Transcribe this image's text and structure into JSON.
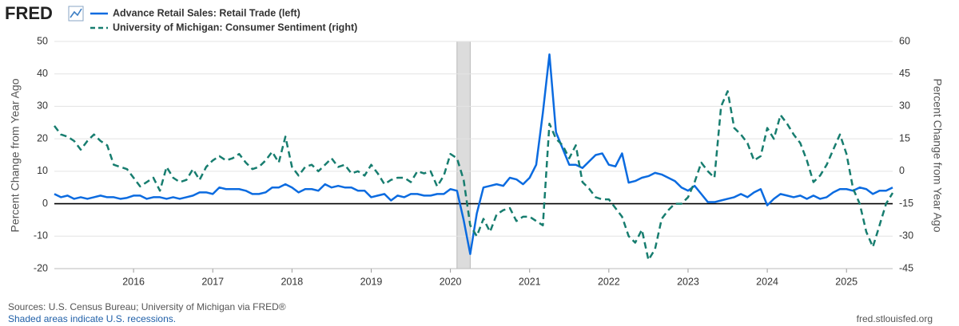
{
  "chart_data": {
    "type": "line",
    "logo": "FRED",
    "ylabel": "Percent Change from Year Ago",
    "y2label": "Percent Change from Year Ago",
    "sources": "Sources: U.S. Census Bureau; University of Michigan via FRED®",
    "note": "Shaded areas indicate U.S. recessions.",
    "credit": "fred.stlouisfed.org",
    "xlim": [
      2015,
      2025.583
    ],
    "xticks": [
      2016,
      2017,
      2018,
      2019,
      2020,
      2021,
      2022,
      2023,
      2024,
      2025
    ],
    "ylim": [
      -20,
      50
    ],
    "yticks": [
      -20,
      -10,
      0,
      10,
      20,
      30,
      40,
      50
    ],
    "y2lim": [
      -45,
      60
    ],
    "y2ticks": [
      -45,
      -30,
      -15,
      0,
      15,
      30,
      45,
      60
    ],
    "grid": true,
    "recessions": [
      {
        "start": 2020.083,
        "end": 2020.25
      }
    ],
    "x": [
      2015,
      2015.083,
      2015.167,
      2015.25,
      2015.333,
      2015.417,
      2015.5,
      2015.583,
      2015.667,
      2015.75,
      2015.833,
      2015.917,
      2016,
      2016.083,
      2016.167,
      2016.25,
      2016.333,
      2016.417,
      2016.5,
      2016.583,
      2016.667,
      2016.75,
      2016.833,
      2016.917,
      2017,
      2017.083,
      2017.167,
      2017.25,
      2017.333,
      2017.417,
      2017.5,
      2017.583,
      2017.667,
      2017.75,
      2017.833,
      2017.917,
      2018,
      2018.083,
      2018.167,
      2018.25,
      2018.333,
      2018.417,
      2018.5,
      2018.583,
      2018.667,
      2018.75,
      2018.833,
      2018.917,
      2019,
      2019.083,
      2019.167,
      2019.25,
      2019.333,
      2019.417,
      2019.5,
      2019.583,
      2019.667,
      2019.75,
      2019.833,
      2019.917,
      2020,
      2020.083,
      2020.167,
      2020.25,
      2020.333,
      2020.417,
      2020.5,
      2020.583,
      2020.667,
      2020.75,
      2020.833,
      2020.917,
      2021,
      2021.083,
      2021.167,
      2021.25,
      2021.333,
      2021.417,
      2021.5,
      2021.583,
      2021.667,
      2021.75,
      2021.833,
      2021.917,
      2022,
      2022.083,
      2022.167,
      2022.25,
      2022.333,
      2022.417,
      2022.5,
      2022.583,
      2022.667,
      2022.75,
      2022.833,
      2022.917,
      2023,
      2023.083,
      2023.167,
      2023.25,
      2023.333,
      2023.417,
      2023.5,
      2023.583,
      2023.667,
      2023.75,
      2023.833,
      2023.917,
      2024,
      2024.083,
      2024.167,
      2024.25,
      2024.333,
      2024.417,
      2024.5,
      2024.583,
      2024.667,
      2024.75,
      2024.833,
      2024.917,
      2025,
      2025.083,
      2025.167,
      2025.25,
      2025.333,
      2025.417,
      2025.5,
      2025.583
    ],
    "series": [
      {
        "name": "Advance Retail Sales: Retail Trade (left)",
        "color": "#0b6be0",
        "line_style": "solid",
        "axis": "y",
        "values": [
          3,
          2,
          2.5,
          1.5,
          2,
          1.5,
          2,
          2.5,
          2,
          2,
          1.5,
          1.8,
          2.5,
          2.5,
          1.5,
          2,
          2,
          1.5,
          2,
          1.5,
          2,
          2.5,
          3.5,
          3.5,
          3,
          5,
          4.5,
          4.5,
          4.5,
          4,
          3,
          3,
          3.5,
          5,
          5,
          6,
          5,
          3.5,
          4.5,
          4.5,
          4,
          6,
          5,
          5.5,
          5,
          5,
          4,
          4,
          2,
          2.5,
          3,
          1,
          2.5,
          2,
          3,
          3,
          2.5,
          2.5,
          3,
          3,
          4.5,
          4,
          -5,
          -15.5,
          -3,
          5,
          5.5,
          6,
          5.5,
          8,
          7.5,
          6,
          8,
          12,
          28,
          46,
          22,
          17,
          12,
          12,
          11,
          13,
          15,
          15.5,
          12,
          11.5,
          15.5,
          6.5,
          7,
          8,
          8.5,
          9.5,
          9,
          8,
          7,
          5,
          4,
          5.5,
          3,
          0.5,
          0.5,
          1,
          1.5,
          2,
          3,
          2,
          3.5,
          4.5,
          -0.5,
          1.5,
          3,
          2.5,
          2,
          2.5,
          1.5,
          2.5,
          1.5,
          2,
          3.5,
          4.5,
          4.5,
          4,
          5,
          4.5,
          3,
          4,
          4,
          5
        ]
      },
      {
        "name": "University of Michigan: Consumer Sentiment (right)",
        "color": "#177d6f",
        "line_style": "dashed",
        "axis": "y2",
        "values": [
          21,
          17,
          16,
          14,
          10,
          14,
          17,
          14,
          12,
          3,
          2,
          1,
          -3,
          -7,
          -5,
          -3,
          -9,
          2,
          -3,
          -5,
          -4,
          1,
          -4,
          2,
          5,
          7,
          5,
          6,
          8,
          4,
          1,
          2,
          5,
          9,
          4,
          16,
          2,
          -2,
          2,
          3,
          0,
          3,
          6,
          2,
          3,
          -1,
          0,
          -2,
          3,
          -1,
          -6,
          -4,
          -3,
          -3,
          -5,
          0,
          -1,
          0,
          -7,
          -2,
          8,
          6,
          -4,
          -25,
          -30,
          -22,
          -28,
          -20,
          -18,
          -17,
          -23,
          -21,
          -21,
          -23,
          -25,
          22,
          15,
          12,
          6,
          12,
          -5,
          -8,
          -12,
          -13,
          -13,
          -17,
          -21,
          -30,
          -33,
          -27,
          -41,
          -36,
          -22,
          -18,
          -15,
          -15,
          -12,
          -5,
          4,
          0,
          -3,
          30,
          37,
          20,
          17,
          13,
          5,
          7,
          20,
          15,
          26,
          22,
          17,
          13,
          5,
          -5,
          -2,
          3,
          10,
          17,
          8,
          -8,
          -15,
          -28,
          -35,
          -25,
          -15,
          -10
        ]
      }
    ]
  }
}
